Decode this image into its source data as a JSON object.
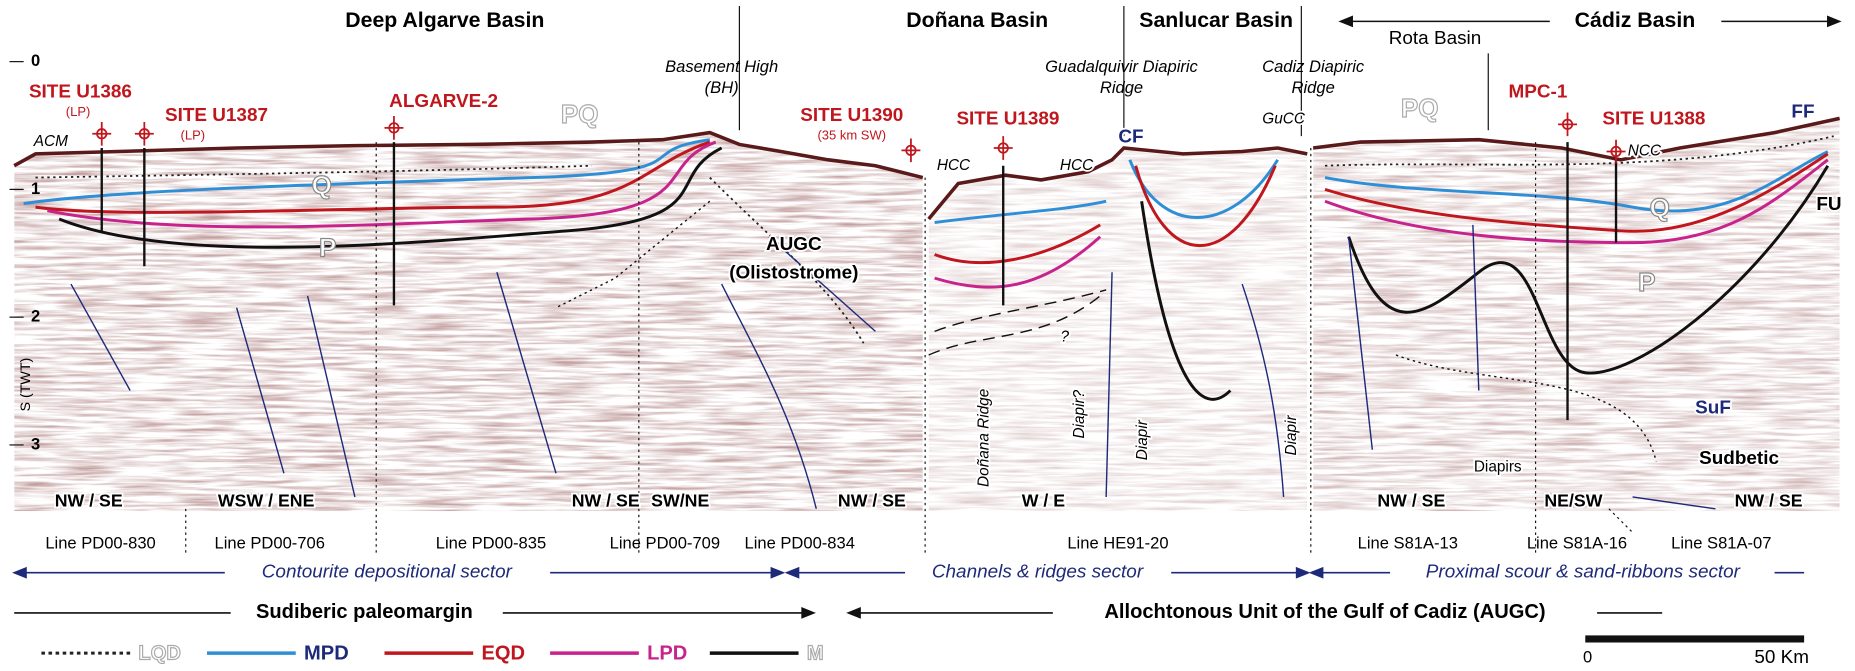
{
  "basins": [
    "Deep Algarve Basin",
    "Doñana Basin",
    "Sanlucar Basin",
    "Cádiz Basin",
    "Rota Basin"
  ],
  "axis": {
    "label": "S (TWT)",
    "ticks": [
      0,
      1,
      2,
      3
    ]
  },
  "sites": [
    {
      "name": "SITE U1386",
      "note": "(LP)"
    },
    {
      "name": "SITE U1387",
      "note": "(LP)"
    },
    {
      "name": "ALGARVE-2"
    },
    {
      "name": "SITE U1390",
      "note": "(35 km SW)"
    },
    {
      "name": "SITE U1389"
    },
    {
      "name": "MPC-1"
    },
    {
      "name": "SITE U1388"
    }
  ],
  "structures": [
    [
      "Basement High",
      "(BH)"
    ],
    [
      "Guadalquivir Diapiric",
      "Ridge"
    ],
    [
      "Cadiz Diapiric",
      "Ridge"
    ]
  ],
  "labels": [
    "ACM",
    "PQ",
    "Q",
    "P",
    "AUGC",
    "(Olistostrome)",
    "HCC",
    "HCC",
    "CF",
    "GuCC",
    "Doñana Ridge",
    "Diapir?",
    "Diapir",
    "Diapir",
    "?",
    "PQ",
    "NCC",
    "FF",
    "FU",
    "Q",
    "P",
    "SuF",
    "Sudbetic",
    "Diapirs"
  ],
  "orientations": [
    "NW / SE",
    "WSW / ENE",
    "NW / SE",
    "SW/NE",
    "NW / SE",
    "W / E",
    "NW / SE",
    "NE/SW",
    "NW / SE"
  ],
  "lines": [
    "Line PD00-830",
    "Line PD00-706",
    "Line PD00-835",
    "Line PD00-709",
    "Line PD00-834",
    "Line HE91-20",
    "Line S81A-13",
    "Line S81A-16",
    "Line S81A-07"
  ],
  "sectors": [
    "Contourite depositional sector",
    "Channels & ridges sector",
    "Proximal scour & sand-ribbons sector"
  ],
  "margins": [
    "Sudiberic paleomargin",
    "Allochtonous Unit of the Gulf of Cadiz (AUGC)"
  ],
  "legend": [
    {
      "name": "LQD",
      "color": "#222222",
      "style": "dotted"
    },
    {
      "name": "MPD",
      "color": "#2f8fd6"
    },
    {
      "name": "EQD",
      "color": "#c0171e"
    },
    {
      "name": "LPD",
      "color": "#c8228c"
    },
    {
      "name": "M",
      "color": "#111111"
    }
  ],
  "scale_bar": {
    "start": "0",
    "end": "50 Km"
  }
}
